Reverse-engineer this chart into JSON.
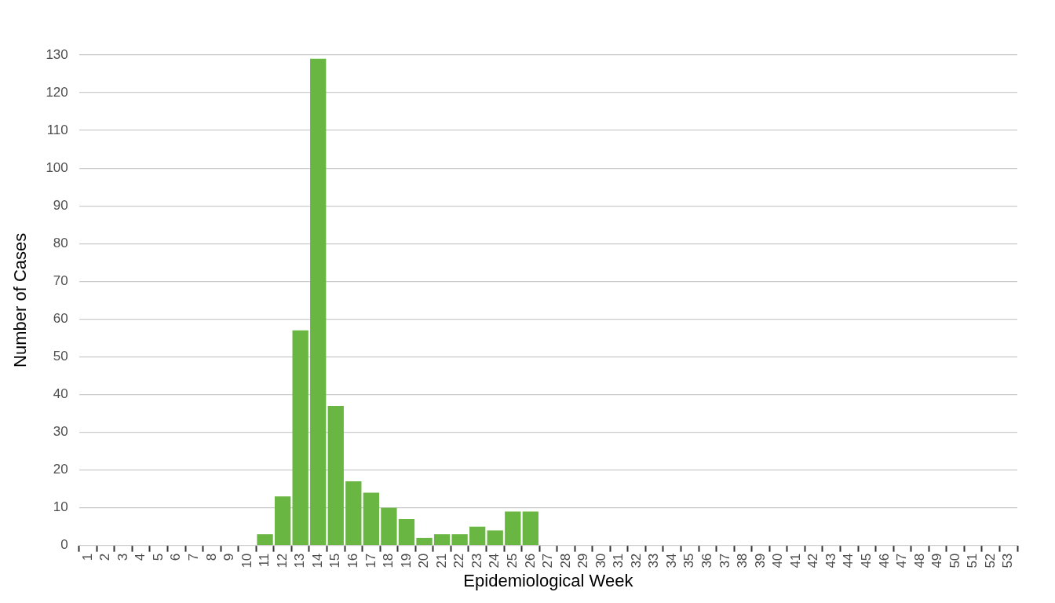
{
  "chart_data": {
    "type": "bar",
    "xlabel": "Epidemiological Week",
    "ylabel": "Number of Cases",
    "categories": [
      "1",
      "2",
      "3",
      "4",
      "5",
      "6",
      "7",
      "8",
      "9",
      "10",
      "11",
      "12",
      "13",
      "14",
      "15",
      "16",
      "17",
      "18",
      "19",
      "20",
      "21",
      "22",
      "23",
      "24",
      "25",
      "26",
      "27",
      "28",
      "29",
      "30",
      "31",
      "32",
      "33",
      "34",
      "35",
      "36",
      "37",
      "38",
      "39",
      "40",
      "41",
      "42",
      "43",
      "44",
      "45",
      "46",
      "47",
      "48",
      "49",
      "50",
      "51",
      "52",
      "53"
    ],
    "values": [
      0,
      0,
      0,
      0,
      0,
      0,
      0,
      0,
      0,
      0,
      3,
      13,
      57,
      129,
      37,
      17,
      14,
      10,
      7,
      2,
      3,
      3,
      5,
      4,
      9,
      9,
      0,
      0,
      0,
      0,
      0,
      0,
      0,
      0,
      0,
      0,
      0,
      0,
      0,
      0,
      0,
      0,
      0,
      0,
      0,
      0,
      0,
      0,
      0,
      0,
      0,
      0,
      0
    ],
    "color": "#6ab642",
    "ylim": [
      0,
      130
    ],
    "yticks": [
      0,
      10,
      20,
      30,
      40,
      50,
      60,
      70,
      80,
      90,
      100,
      110,
      120,
      130
    ],
    "grid": "y",
    "legend": false
  }
}
